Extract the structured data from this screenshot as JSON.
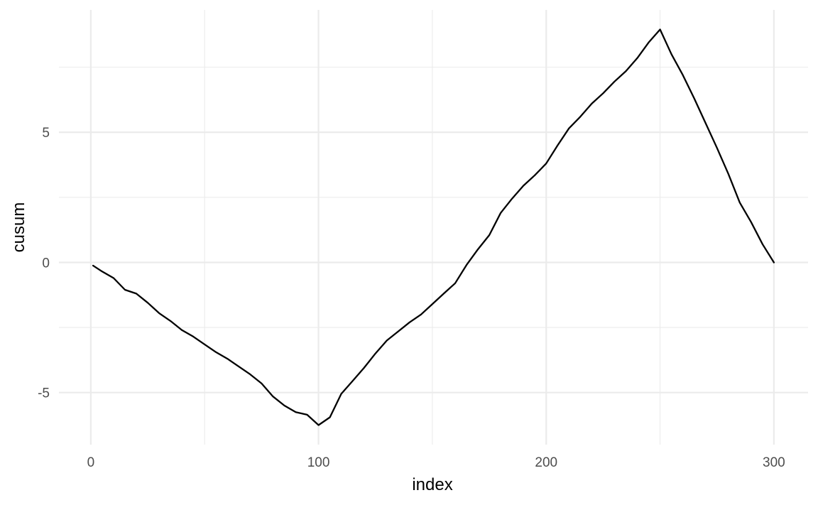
{
  "chart_data": {
    "type": "line",
    "xlabel": "index",
    "ylabel": "cusum",
    "xlim": [
      -14,
      315
    ],
    "ylim": [
      -7.0,
      9.7
    ],
    "x_ticks_major": [
      0,
      100,
      200,
      300
    ],
    "x_ticks_minor": [
      50,
      150,
      250
    ],
    "y_ticks_major": [
      -5,
      0,
      5
    ],
    "y_ticks_minor": [
      -2.5,
      2.5,
      7.5
    ],
    "x_tick_labels": [
      "0",
      "100",
      "200",
      "300"
    ],
    "y_tick_labels": [
      "-5",
      "0",
      "5"
    ],
    "grid": true,
    "line_color": "#000000",
    "series": [
      {
        "x": [
          1,
          5,
          10,
          15,
          20,
          25,
          30,
          35,
          40,
          45,
          50,
          55,
          60,
          65,
          70,
          75,
          80,
          85,
          90,
          95,
          100,
          105,
          110,
          115,
          120,
          125,
          130,
          135,
          140,
          145,
          150,
          155,
          160,
          165,
          170,
          175,
          180,
          185,
          190,
          195,
          200,
          205,
          210,
          215,
          220,
          225,
          230,
          235,
          240,
          245,
          250,
          255,
          260,
          265,
          270,
          275,
          280,
          285,
          290,
          295,
          300
        ],
        "values": [
          -0.12,
          -0.35,
          -0.6,
          -1.05,
          -1.2,
          -1.55,
          -1.95,
          -2.25,
          -2.6,
          -2.85,
          -3.15,
          -3.45,
          -3.7,
          -4.0,
          -4.3,
          -4.65,
          -5.15,
          -5.5,
          -5.75,
          -5.85,
          -6.25,
          -5.95,
          -5.05,
          -4.55,
          -4.05,
          -3.5,
          -3.0,
          -2.65,
          -2.3,
          -2.0,
          -1.6,
          -1.2,
          -0.8,
          -0.1,
          0.5,
          1.05,
          1.9,
          2.45,
          2.95,
          3.35,
          3.8,
          4.5,
          5.15,
          5.6,
          6.1,
          6.5,
          6.95,
          7.35,
          7.85,
          8.45,
          8.95,
          8.0,
          7.2,
          6.3,
          5.35,
          4.4,
          3.4,
          2.3,
          1.55,
          0.7,
          0.0
        ]
      }
    ]
  }
}
